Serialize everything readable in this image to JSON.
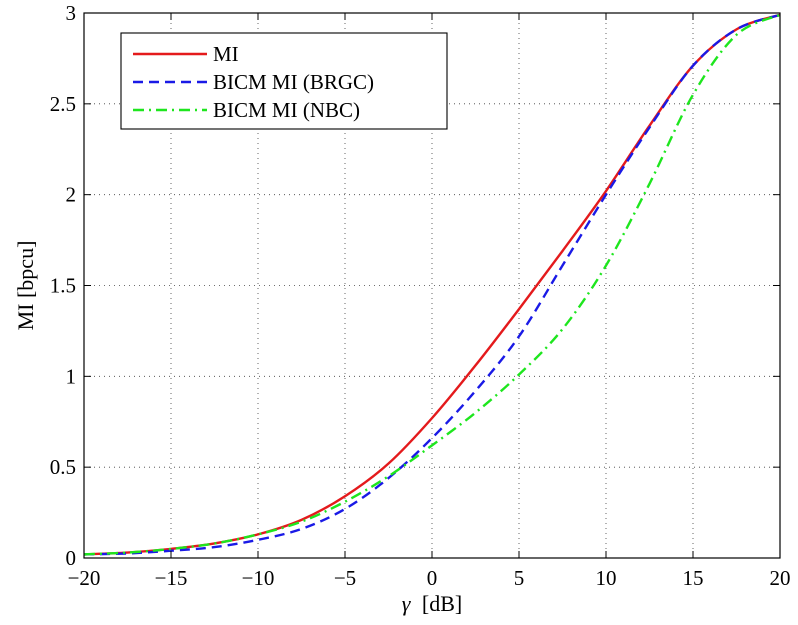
{
  "chart_data": {
    "type": "line",
    "title": "",
    "xlabel_symbol": "γ",
    "xlabel_unit": "[dB]",
    "ylabel": "MI [bpcu]",
    "xlim": [
      -20,
      20
    ],
    "ylim": [
      0,
      3
    ],
    "xticks": [
      -20,
      -15,
      -10,
      -5,
      0,
      5,
      10,
      15,
      20
    ],
    "xtick_labels": [
      "−20",
      "−15",
      "−10",
      "−5",
      "0",
      "5",
      "10",
      "15",
      "20"
    ],
    "yticks": [
      0,
      0.5,
      1,
      1.5,
      2,
      2.5,
      3
    ],
    "ytick_labels": [
      "0",
      "0.5",
      "1",
      "1.5",
      "2",
      "2.5",
      "3"
    ],
    "grid": true,
    "legend_position": "top-left",
    "series": [
      {
        "name": "MI",
        "color": "#e41a1c",
        "style": "solid",
        "x": [
          -20,
          -17.5,
          -15,
          -12.5,
          -10,
          -7.5,
          -5,
          -2.5,
          0,
          2.5,
          5,
          7.5,
          10,
          12.5,
          15,
          17.5,
          20
        ],
        "y": [
          0.02,
          0.03,
          0.05,
          0.08,
          0.13,
          0.21,
          0.34,
          0.52,
          0.77,
          1.06,
          1.37,
          1.69,
          2.02,
          2.38,
          2.71,
          2.91,
          2.99
        ]
      },
      {
        "name": "BICM MI (BRGC)",
        "color": "#1a1ae6",
        "style": "dashed",
        "x": [
          -20,
          -17.5,
          -15,
          -12.5,
          -10,
          -7.5,
          -5,
          -2.5,
          0,
          2.5,
          5,
          7.5,
          10,
          12.5,
          15,
          17.5,
          20
        ],
        "y": [
          0.02,
          0.025,
          0.04,
          0.06,
          0.1,
          0.16,
          0.27,
          0.44,
          0.66,
          0.92,
          1.22,
          1.61,
          2.0,
          2.37,
          2.71,
          2.91,
          2.99
        ]
      },
      {
        "name": "BICM MI (NBC)",
        "color": "#1ee61e",
        "style": "dashdot",
        "x": [
          -20,
          -17.5,
          -15,
          -12.5,
          -10,
          -7.5,
          -5,
          -2.5,
          0,
          2.5,
          5,
          7.5,
          10,
          12.5,
          15,
          17.5,
          20
        ],
        "y": [
          0.02,
          0.03,
          0.05,
          0.08,
          0.13,
          0.2,
          0.31,
          0.45,
          0.62,
          0.8,
          1.01,
          1.26,
          1.61,
          2.06,
          2.55,
          2.88,
          2.99
        ]
      }
    ]
  }
}
